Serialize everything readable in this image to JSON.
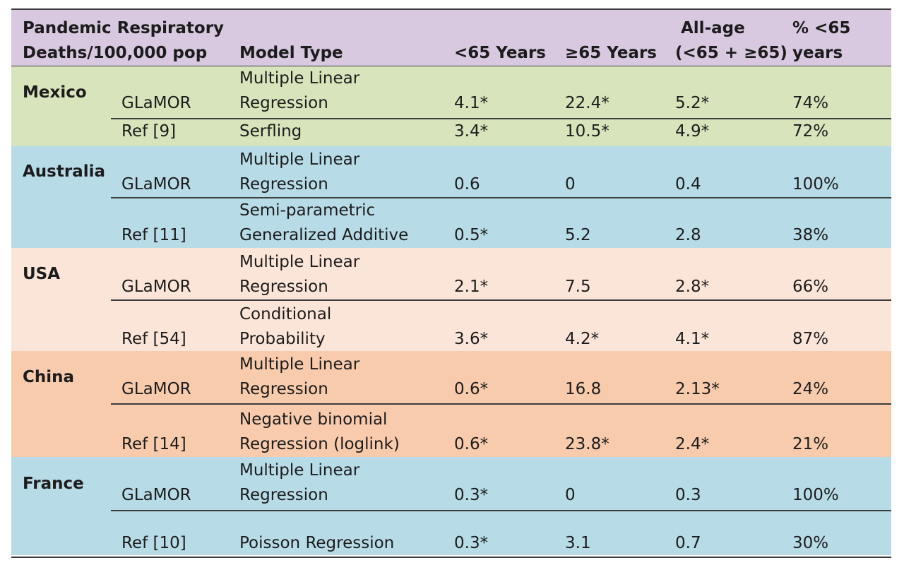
{
  "colors": {
    "header": "#d8c8e0",
    "Mexico": "#d8e4bc",
    "Australia": "#b8dbe8",
    "USA": "#fbe5d8",
    "China": "#f8cbad",
    "France": "#b8dbe8"
  },
  "header": {
    "measure_line1": "Pandemic Respiratory",
    "measure_line2": "Deaths/100,000 pop",
    "model_type": "Model Type",
    "under65": "<65 Years",
    "over65": "≥65 Years",
    "allage_line1": "All-age",
    "allage_line2": "(<65 + ≥65)",
    "pct_line1": "% <65",
    "pct_line2": "years"
  },
  "countries": [
    {
      "name": "Mexico",
      "rows": [
        {
          "source": "GLaMOR",
          "model_line1": "Multiple Linear",
          "model_line2": "Regression",
          "under65": "4.1*",
          "over65": "22.4*",
          "allage": "5.2*",
          "pct": "74%"
        },
        {
          "source": "Ref [9]",
          "model_line1": "",
          "model_line2": "Serfling",
          "under65": "3.4*",
          "over65": "10.5*",
          "allage": "4.9*",
          "pct": "72%"
        }
      ]
    },
    {
      "name": "Australia",
      "rows": [
        {
          "source": "GLaMOR",
          "model_line1": "Multiple Linear",
          "model_line2": "Regression",
          "under65": "0.6",
          "over65": "0",
          "allage": "0.4",
          "pct": "100%"
        },
        {
          "source": "Ref [11]",
          "model_line1": "Semi-parametric",
          "model_line2": "Generalized Additive",
          "under65": "0.5*",
          "over65": "5.2",
          "allage": "2.8",
          "pct": "38%"
        }
      ]
    },
    {
      "name": "USA",
      "rows": [
        {
          "source": "GLaMOR",
          "model_line1": "Multiple Linear",
          "model_line2": "Regression",
          "under65": "2.1*",
          "over65": "7.5",
          "allage": "2.8*",
          "pct": "66%"
        },
        {
          "source": "Ref [54]",
          "model_line1": "Conditional",
          "model_line2": "Probability",
          "under65": "3.6*",
          "over65": "4.2*",
          "allage": "4.1*",
          "pct": "87%"
        }
      ]
    },
    {
      "name": "China",
      "rows": [
        {
          "source": "GLaMOR",
          "model_line1": "Multiple Linear",
          "model_line2": "Regression",
          "under65": "0.6*",
          "over65": "16.8",
          "allage": "2.13*",
          "pct": "24%"
        },
        {
          "source": "Ref [14]",
          "model_line1": "Negative binomial",
          "model_line2": "Regression (loglink)",
          "under65": "0.6*",
          "over65": "23.8*",
          "allage": "2.4*",
          "pct": "21%"
        }
      ]
    },
    {
      "name": "France",
      "rows": [
        {
          "source": "GLaMOR",
          "model_line1": "Multiple Linear",
          "model_line2": "Regression",
          "under65": "0.3*",
          "over65": "0",
          "allage": "0.3",
          "pct": "100%"
        },
        {
          "source": "Ref [10]",
          "model_line1": "",
          "model_line2": "Poisson Regression",
          "under65": "0.3*",
          "over65": "3.1",
          "allage": "0.7",
          "pct": "30%"
        }
      ]
    }
  ]
}
